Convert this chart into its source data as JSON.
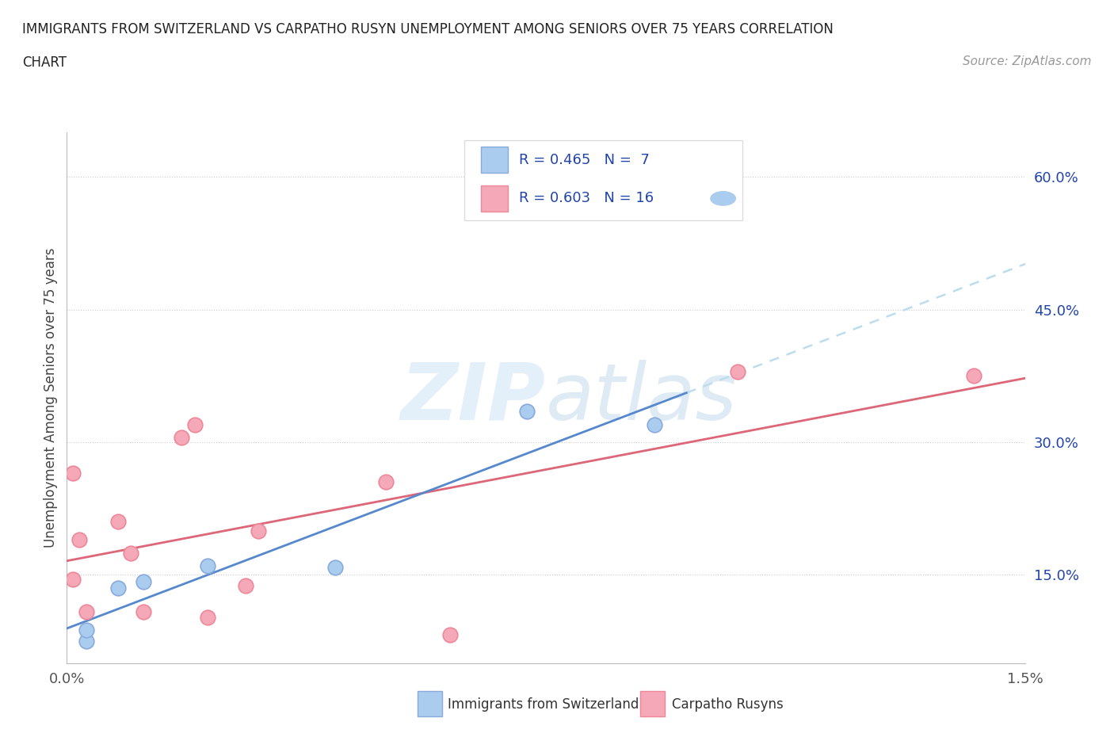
{
  "title_line1": "IMMIGRANTS FROM SWITZERLAND VS CARPATHO RUSYN UNEMPLOYMENT AMONG SENIORS OVER 75 YEARS CORRELATION",
  "title_line2": "CHART",
  "source": "Source: ZipAtlas.com",
  "ylabel": "Unemployment Among Seniors over 75 years",
  "xlim": [
    0.0,
    0.015
  ],
  "ylim": [
    0.05,
    0.65
  ],
  "yticks": [
    0.15,
    0.3,
    0.45,
    0.6
  ],
  "ytick_labels": [
    "15.0%",
    "30.0%",
    "45.0%",
    "60.0%"
  ],
  "xticks": [
    0.0,
    0.003,
    0.006,
    0.009,
    0.012,
    0.015
  ],
  "xtick_labels": [
    "0.0%",
    "",
    "",
    "",
    "",
    "1.5%"
  ],
  "color_blue": "#aaccee",
  "color_pink": "#f5a8b8",
  "edge_blue": "#88aadd",
  "edge_pink": "#ee8899",
  "trend_blue": "#5588cc",
  "trend_pink": "#dd6677",
  "trend_dash": "#bbddee",
  "watermark_color": "#cce4f5",
  "legend_color": "#2244aa",
  "swiss_points_x": [
    0.0003,
    0.0003,
    0.0008,
    0.0012,
    0.0022,
    0.0042,
    0.0072,
    0.0092
  ],
  "swiss_points_y": [
    0.075,
    0.088,
    0.135,
    0.142,
    0.16,
    0.158,
    0.335,
    0.32
  ],
  "carpatho_points_x": [
    0.0001,
    0.0001,
    0.0002,
    0.0003,
    0.0008,
    0.001,
    0.0012,
    0.0018,
    0.002,
    0.0022,
    0.0028,
    0.003,
    0.005,
    0.006,
    0.0105,
    0.0142
  ],
  "carpatho_points_y": [
    0.265,
    0.145,
    0.19,
    0.108,
    0.21,
    0.175,
    0.108,
    0.305,
    0.32,
    0.102,
    0.138,
    0.2,
    0.255,
    0.082,
    0.38,
    0.375
  ]
}
